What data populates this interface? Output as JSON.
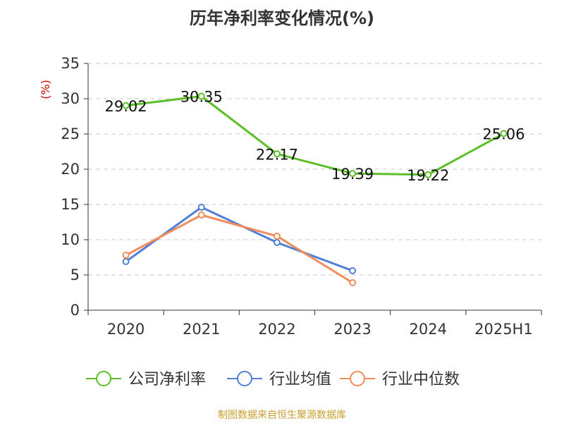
{
  "chart_data": {
    "type": "line",
    "title": "历年净利率变化情况(%)",
    "unit_label": "(%)",
    "categories": [
      "2020",
      "2021",
      "2022",
      "2023",
      "2024",
      "2025H1"
    ],
    "ylim": [
      0,
      35
    ],
    "yticks": [
      0,
      5,
      10,
      15,
      20,
      25,
      30,
      35
    ],
    "grid": true,
    "legend_position": "bottom",
    "series": [
      {
        "name": "公司净利率",
        "color": "#5cbf28",
        "values": [
          29.02,
          30.35,
          22.17,
          19.39,
          19.22,
          25.06
        ],
        "labels": true
      },
      {
        "name": "行业均值",
        "color": "#4f7fd8",
        "values": [
          6.9,
          14.6,
          9.6,
          5.6,
          null,
          null
        ],
        "labels": false
      },
      {
        "name": "行业中位数",
        "color": "#f28c5a",
        "values": [
          7.8,
          13.5,
          10.5,
          3.9,
          null,
          null
        ],
        "labels": false
      }
    ],
    "unit_label_color": "#cc0000"
  },
  "footer": {
    "source": "制图数据来自恒生聚源数据库"
  }
}
